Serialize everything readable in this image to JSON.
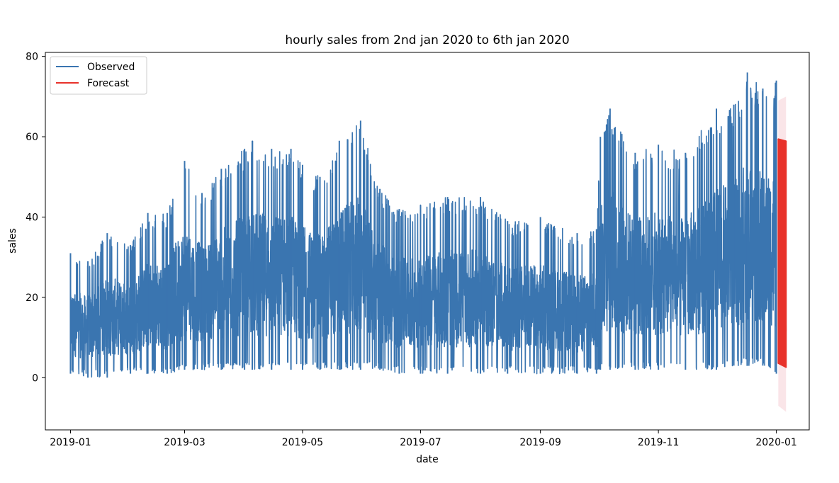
{
  "chart_data": {
    "type": "line",
    "title": "hourly sales from 2nd jan 2020 to 6th jan 2020",
    "xlabel": "date",
    "ylabel": "sales",
    "xlim": [
      "2018-12-19",
      "2020-01-18"
    ],
    "ylim": [
      -13,
      81
    ],
    "x_ticks": [
      "2019-01",
      "2019-03",
      "2019-05",
      "2019-07",
      "2019-09",
      "2019-11",
      "2020-01"
    ],
    "y_ticks": [
      0,
      20,
      40,
      60,
      80
    ],
    "grid": false,
    "legend": {
      "placement": "top-left",
      "entries": [
        "Observed",
        "Forecast"
      ]
    },
    "colors": {
      "observed": "#3a75b0",
      "forecast": "#e8322b",
      "interval": "#f5d0d6"
    },
    "series": [
      {
        "name": "Observed",
        "style": "high-frequency hourly line; envelope shown as daily min/max",
        "envelope": [
          {
            "x": "2019-01-01",
            "low": 1,
            "high": 31
          },
          {
            "x": "2019-01-10",
            "low": 0,
            "high": 29
          },
          {
            "x": "2019-01-20",
            "low": 0,
            "high": 36
          },
          {
            "x": "2019-02-01",
            "low": 1,
            "high": 33
          },
          {
            "x": "2019-02-10",
            "low": 1,
            "high": 41
          },
          {
            "x": "2019-02-20",
            "low": 1,
            "high": 41
          },
          {
            "x": "2019-03-01",
            "low": 2,
            "high": 54
          },
          {
            "x": "2019-03-10",
            "low": 2,
            "high": 46
          },
          {
            "x": "2019-03-20",
            "low": 2,
            "high": 52
          },
          {
            "x": "2019-04-01",
            "low": 2,
            "high": 57
          },
          {
            "x": "2019-04-05",
            "low": 2,
            "high": 59
          },
          {
            "x": "2019-04-15",
            "low": 2,
            "high": 57
          },
          {
            "x": "2019-04-25",
            "low": 2,
            "high": 57
          },
          {
            "x": "2019-05-01",
            "low": 2,
            "high": 53
          },
          {
            "x": "2019-05-10",
            "low": 2,
            "high": 50
          },
          {
            "x": "2019-05-20",
            "low": 2,
            "high": 59
          },
          {
            "x": "2019-05-31",
            "low": 2,
            "high": 64
          },
          {
            "x": "2019-06-10",
            "low": 2,
            "high": 47
          },
          {
            "x": "2019-06-20",
            "low": 1,
            "high": 42
          },
          {
            "x": "2019-07-01",
            "low": 1,
            "high": 43
          },
          {
            "x": "2019-07-15",
            "low": 1,
            "high": 45
          },
          {
            "x": "2019-08-01",
            "low": 1,
            "high": 45
          },
          {
            "x": "2019-08-15",
            "low": 1,
            "high": 39
          },
          {
            "x": "2019-09-01",
            "low": 1,
            "high": 40
          },
          {
            "x": "2019-09-20",
            "low": 1,
            "high": 36
          },
          {
            "x": "2019-09-30",
            "low": 1,
            "high": 37
          },
          {
            "x": "2019-10-02",
            "low": 2,
            "high": 60
          },
          {
            "x": "2019-10-07",
            "low": 2,
            "high": 67
          },
          {
            "x": "2019-10-20",
            "low": 2,
            "high": 56
          },
          {
            "x": "2019-11-01",
            "low": 2,
            "high": 58
          },
          {
            "x": "2019-11-15",
            "low": 2,
            "high": 56
          },
          {
            "x": "2019-12-01",
            "low": 2,
            "high": 67
          },
          {
            "x": "2019-12-10",
            "low": 3,
            "high": 68
          },
          {
            "x": "2019-12-17",
            "low": 3,
            "high": 76
          },
          {
            "x": "2019-12-25",
            "low": 3,
            "high": 72
          },
          {
            "x": "2020-01-01",
            "low": 1,
            "high": 74
          }
        ]
      },
      {
        "name": "Forecast",
        "style": "high-frequency hourly line; envelope shown as min/max",
        "envelope": [
          {
            "x": "2020-01-02",
            "low": 3.5,
            "high": 59.5
          },
          {
            "x": "2020-01-06",
            "low": 2.5,
            "high": 59
          }
        ],
        "interval": [
          {
            "x": "2020-01-02",
            "low": -7,
            "high": 69
          },
          {
            "x": "2020-01-06",
            "low": -8.5,
            "high": 70
          }
        ]
      }
    ]
  }
}
